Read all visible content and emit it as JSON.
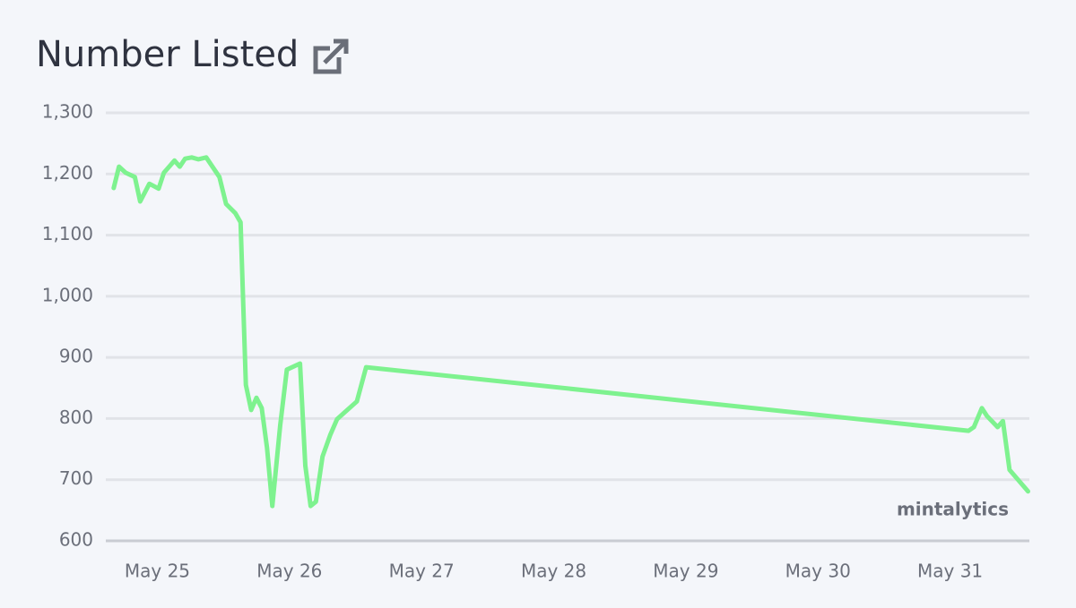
{
  "chart_data": {
    "type": "line",
    "title": "Number Listed",
    "annotation": "mintalytics",
    "x": [
      24.67,
      24.71,
      24.76,
      24.83,
      24.87,
      24.94,
      25.01,
      25.05,
      25.09,
      25.13,
      25.17,
      25.21,
      25.26,
      25.31,
      25.37,
      25.47,
      25.52,
      25.59,
      25.63,
      25.67,
      25.71,
      25.75,
      25.79,
      25.83,
      25.87,
      25.93,
      25.98,
      26.08,
      26.12,
      26.16,
      26.2,
      26.25,
      26.31,
      26.36,
      26.51,
      26.58,
      31.14,
      31.18,
      31.24,
      31.28,
      31.36,
      31.4,
      31.45,
      31.59
    ],
    "values": [
      1177,
      1212,
      1202,
      1195,
      1155,
      1184,
      1176,
      1202,
      1212,
      1222,
      1212,
      1225,
      1227,
      1224,
      1227,
      1195,
      1151,
      1136,
      1121,
      855,
      814,
      834,
      817,
      752,
      657,
      789,
      880,
      890,
      723,
      657,
      664,
      738,
      774,
      799,
      828,
      884,
      780,
      786,
      817,
      804,
      786,
      796,
      716,
      681
    ],
    "color": "#7ef28f",
    "xlim": [
      24.61,
      31.6
    ],
    "xticks": [
      {
        "value": 25,
        "label": "May 25"
      },
      {
        "value": 26,
        "label": "May 26"
      },
      {
        "value": 27,
        "label": "May 27"
      },
      {
        "value": 28,
        "label": "May 28"
      },
      {
        "value": 29,
        "label": "May 29"
      },
      {
        "value": 30,
        "label": "May 30"
      },
      {
        "value": 31,
        "label": "May 31"
      }
    ],
    "ylim": [
      600,
      1300
    ],
    "yticks": [
      600,
      700,
      800,
      900,
      {
        "value": 1000,
        "label": "1,000"
      },
      {
        "value": 1100,
        "label": "1,100"
      },
      {
        "value": 1200,
        "label": "1,200"
      },
      {
        "value": 1300,
        "label": "1,300"
      }
    ],
    "grid": true
  }
}
